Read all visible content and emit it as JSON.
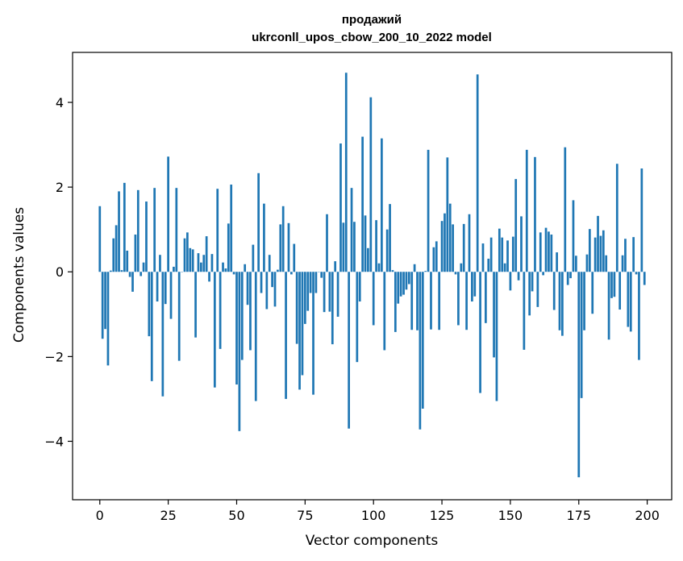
{
  "chart_data": {
    "type": "bar",
    "title_line1": "продажий",
    "title_line2": "ukrconll_upos_cbow_200_10_2022 model",
    "xlabel": "Vector components",
    "ylabel": "Components values",
    "xlim": [
      -9.95,
      208.95
    ],
    "ylim": [
      -5.38,
      5.18
    ],
    "x_ticks": [
      {
        "value": 0,
        "label": "0"
      },
      {
        "value": 25,
        "label": "25"
      },
      {
        "value": 50,
        "label": "50"
      },
      {
        "value": 75,
        "label": "75"
      },
      {
        "value": 100,
        "label": "100"
      },
      {
        "value": 125,
        "label": "125"
      },
      {
        "value": 150,
        "label": "150"
      },
      {
        "value": 175,
        "label": "175"
      },
      {
        "value": 200,
        "label": "200"
      }
    ],
    "y_ticks": [
      {
        "value": -4,
        "label": "−4"
      },
      {
        "value": -2,
        "label": "−2"
      },
      {
        "value": 0,
        "label": "0"
      },
      {
        "value": 2,
        "label": "2"
      },
      {
        "value": 4,
        "label": "4"
      }
    ],
    "bar_color": "#1f77b4",
    "grid": false,
    "values": [
      1.55,
      -1.58,
      -1.35,
      -2.21,
      0.03,
      0.79,
      1.1,
      1.9,
      0.04,
      2.1,
      0.5,
      -0.12,
      -0.47,
      0.88,
      1.93,
      -0.1,
      0.22,
      1.66,
      -1.52,
      -2.58,
      1.98,
      -0.7,
      0.4,
      -2.94,
      -0.76,
      2.72,
      -1.11,
      0.12,
      1.98,
      -2.1,
      0.0,
      0.79,
      0.93,
      0.56,
      0.53,
      -1.55,
      0.44,
      0.22,
      0.4,
      0.84,
      -0.23,
      0.42,
      -2.73,
      1.96,
      -1.82,
      0.22,
      0.08,
      1.14,
      2.06,
      -0.06,
      -2.66,
      -3.76,
      -2.08,
      0.18,
      -0.78,
      -1.85,
      0.64,
      -3.05,
      2.33,
      -0.5,
      1.61,
      -0.88,
      0.4,
      -0.36,
      -0.82,
      0.05,
      1.12,
      1.55,
      -3.0,
      1.15,
      -0.06,
      0.66,
      -1.7,
      -2.78,
      -2.44,
      -1.23,
      -0.92,
      -0.5,
      -2.9,
      -0.5,
      0.0,
      -0.14,
      -0.95,
      1.36,
      -0.94,
      -1.71,
      0.25,
      -1.06,
      3.03,
      1.16,
      4.7,
      -3.7,
      1.98,
      1.18,
      -2.13,
      -0.7,
      3.19,
      1.33,
      0.56,
      4.12,
      -1.26,
      1.22,
      0.2,
      3.15,
      -1.85,
      1.0,
      1.6,
      0.04,
      -1.42,
      -0.75,
      -0.58,
      -0.54,
      -0.42,
      -0.29,
      -1.37,
      0.18,
      -1.38,
      -3.72,
      -3.23,
      0.02,
      2.88,
      -1.36,
      0.58,
      0.72,
      -1.37,
      1.2,
      1.38,
      2.7,
      1.61,
      1.12,
      -0.06,
      -1.26,
      0.2,
      1.13,
      -1.37,
      1.36,
      -0.7,
      -0.58,
      4.66,
      -2.86,
      0.67,
      -1.21,
      0.31,
      0.81,
      -2.02,
      -3.05,
      1.02,
      0.81,
      0.2,
      0.74,
      -0.44,
      0.83,
      2.19,
      -0.2,
      1.31,
      -1.84,
      2.88,
      -1.03,
      -0.46,
      2.71,
      -0.83,
      0.93,
      -0.08,
      1.04,
      0.95,
      0.88,
      -0.9,
      0.46,
      -1.38,
      -1.51,
      2.94,
      -0.31,
      -0.15,
      1.69,
      0.38,
      -4.85,
      -2.98,
      -1.38,
      0.41,
      1.01,
      -0.99,
      0.81,
      1.32,
      0.85,
      0.98,
      0.39,
      -1.6,
      -0.62,
      -0.59,
      2.55,
      -0.89,
      0.39,
      0.78,
      -1.3,
      -1.41,
      0.82,
      -0.06,
      -2.08,
      2.44,
      -0.31
    ]
  }
}
